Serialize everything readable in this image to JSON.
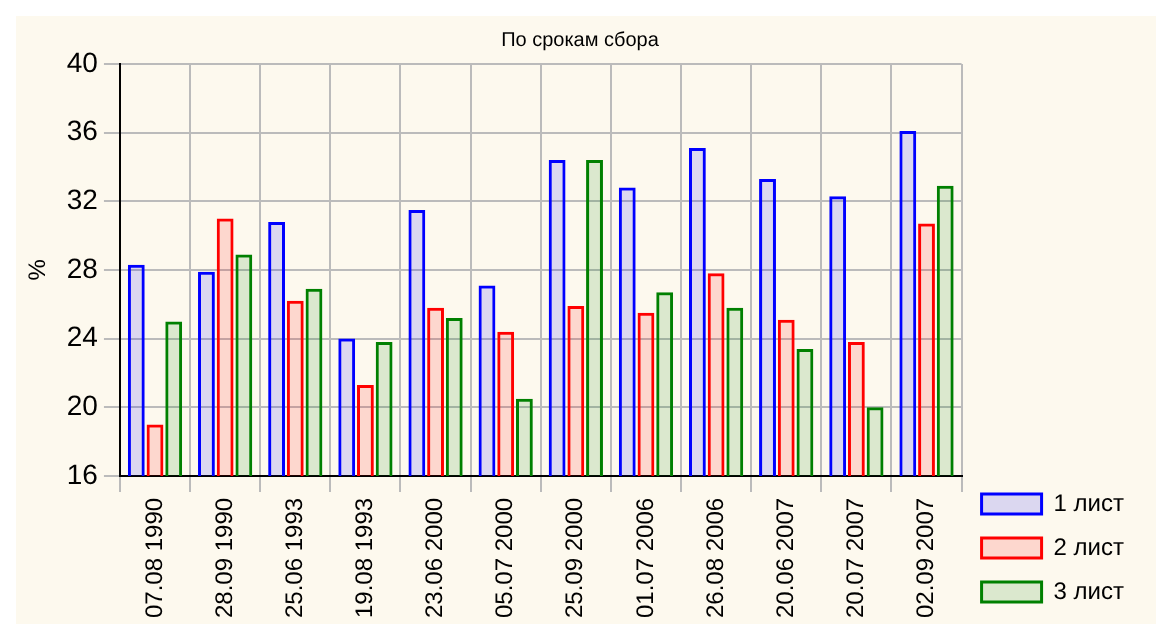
{
  "chart_data": {
    "type": "bar",
    "title": "По срокам сбора",
    "ylabel": "%",
    "categories": [
      "07.08 1990",
      "28.09 1990",
      "25.06 1993",
      "19.08 1993",
      "23.06 2000",
      "05.07 2000",
      "25.09 2000",
      "01.07 2006",
      "26.08 2006",
      "20.06 2007",
      "20.07 2007",
      "02.09 2007"
    ],
    "series": [
      {
        "name": "1 лист",
        "color": "#0000ff",
        "values": [
          28.3,
          27.9,
          30.8,
          24.0,
          31.5,
          27.1,
          34.4,
          32.8,
          35.1,
          33.3,
          32.3,
          36.1
        ]
      },
      {
        "name": "2 лист",
        "color": "#ff0000",
        "values": [
          19.0,
          31.0,
          26.2,
          21.3,
          25.8,
          24.4,
          25.9,
          25.5,
          27.8,
          25.1,
          23.8,
          30.7
        ]
      },
      {
        "name": "3 лист",
        "color": "#008000",
        "values": [
          25.0,
          28.9,
          26.9,
          23.8,
          25.2,
          20.5,
          34.4,
          26.7,
          25.8,
          23.4,
          20.0,
          32.9
        ]
      }
    ],
    "ylim": [
      16,
      40
    ],
    "yticks": [
      16,
      20,
      24,
      28,
      32,
      36,
      40
    ],
    "grid": true,
    "legend": "bottom right"
  }
}
